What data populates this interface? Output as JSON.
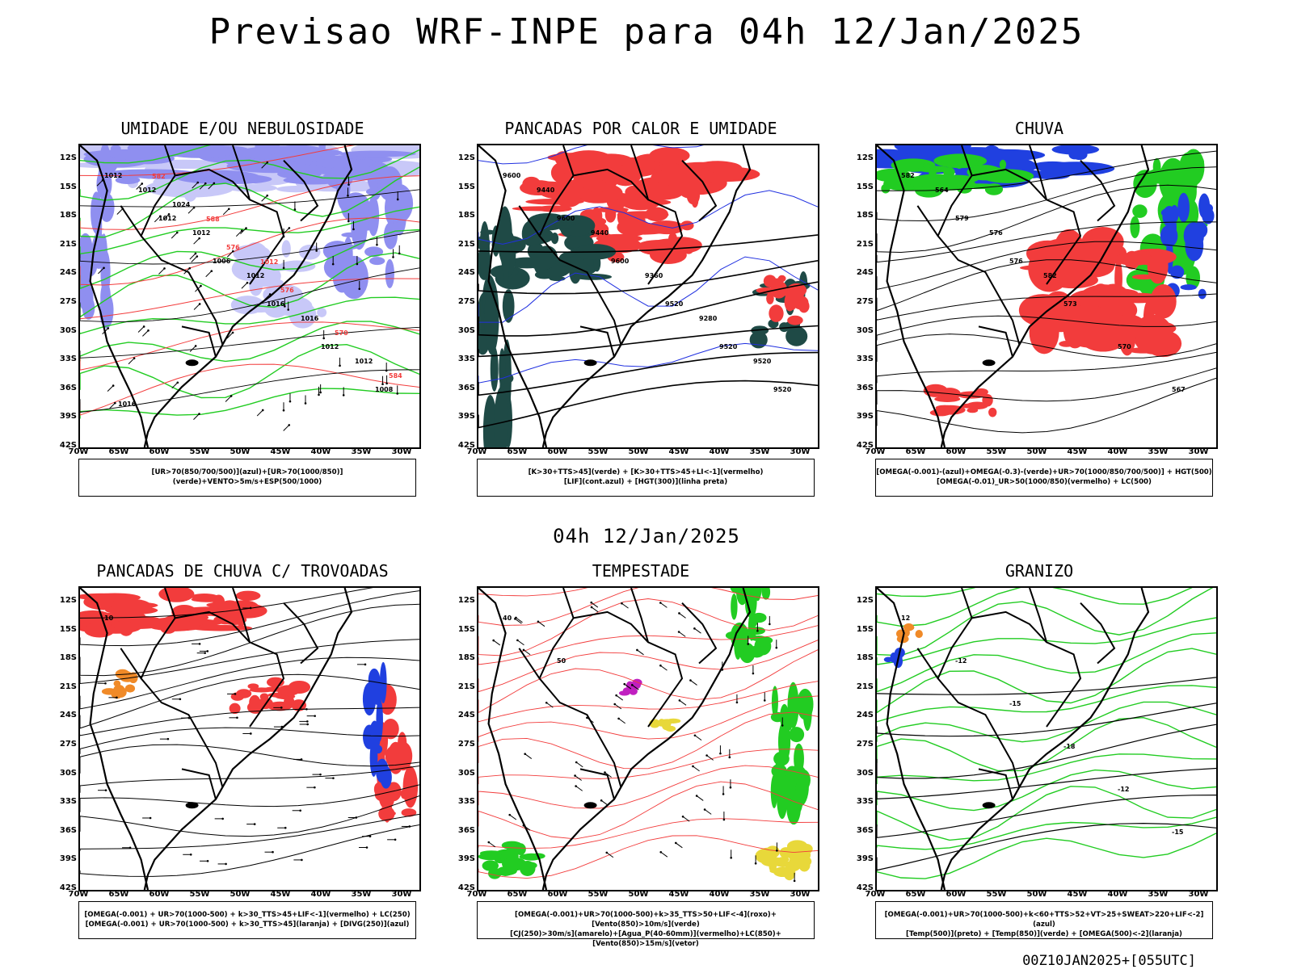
{
  "header": {
    "title": "Previsao WRF-INPE  para 04h 12/Jan/2025"
  },
  "mid_title": "04h 12/Jan/2025",
  "footer": "00Z10JAN2025+[055UTC]",
  "axes": {
    "lat_labels": [
      "12S",
      "15S",
      "18S",
      "21S",
      "24S",
      "27S",
      "30S",
      "33S",
      "36S",
      "39S",
      "42S"
    ],
    "lon_labels": [
      "70W",
      "65W",
      "60W",
      "55W",
      "50W",
      "45W",
      "40W",
      "35W",
      "30W"
    ]
  },
  "panels": [
    {
      "title": "UMIDADE E/OU NEBULOSIDADE",
      "legend": [
        "[UR>70(850/700/500)](azul)+[UR>70(1000/850)](verde)+VENTO>5m/s+ESP(500/1000)"
      ],
      "contour_labels": [
        "1012",
        "1012",
        "1006",
        "1016",
        "1012",
        "1008",
        "1012",
        "1012",
        "1012",
        "1016",
        "1012",
        "1016",
        "1024",
        "576",
        "576",
        "570",
        "584",
        "582",
        "588",
        "1012"
      ]
    },
    {
      "title": "PANCADAS POR CALOR E UMIDADE",
      "legend": [
        "[K>30+TTS>45](verde) + [K>30+TTS>45+LI<-1](vermelho)",
        "[LIF](cont.azul) + [HGT(300)](linha preta)"
      ],
      "contour_labels": [
        "9600",
        "9600",
        "9600",
        "9520",
        "9520",
        "9520",
        "9440",
        "9440",
        "9360",
        "9280",
        "9520"
      ]
    },
    {
      "title": "CHUVA",
      "legend": [
        "[OMEGA(-0.001)-(azul)+OMEGA(-0.3)-(verde)+UR>70(1000/850/700/500)] + HGT(500)",
        "[OMEGA(-0.01)_UR>50(1000/850)(vermelho) + LC(500)"
      ],
      "contour_labels": [
        "582",
        "579",
        "576",
        "573",
        "570",
        "567",
        "564",
        "576",
        "582"
      ]
    },
    {
      "title": "PANCADAS DE CHUVA C/ TROVOADAS",
      "legend": [
        "[OMEGA(-0.001) + UR>70(1000-500) + k>30_TTS>45+LIF<-1](vermelho) + LC(250)",
        "[OMEGA(-0.001) + UR>70(1000-500) + k>30_TTS>45](laranja) + [DIVG(250)](azul)"
      ],
      "contour_labels": [
        "10"
      ]
    },
    {
      "title": "TEMPESTADE",
      "legend": [
        "[OMEGA(-0.001)+UR>70(1000-500)+k>35_TTS>50+LIF<-4](roxo)+[Vento(850)>10m/s](verde)",
        "[CJ(250)>30m/s](amarelo)+[Agua_P(40-60mm)](vermelho)+LC(850)+[Vento(850)>15m/s](vetor)"
      ],
      "contour_labels": [
        "40",
        "50"
      ]
    },
    {
      "title": "GRANIZO",
      "legend": [
        "[OMEGA(-0.001)+UR>70(1000-500)+k<60+TTS>52+VT>25+SWEAT>220+LIF<-2](azul)",
        "[Temp(500)](preto) + [Temp(850)](verde) + [OMEGA(500)<-2](laranja)"
      ],
      "contour_labels": [
        "12",
        "-12",
        "-15",
        "-18",
        "-12",
        "-15"
      ]
    }
  ],
  "colors": {
    "blue_fill": "#8f8ff0",
    "blue_light": "#c8c8f8",
    "green": "#22cc22",
    "red": "#f23c3c",
    "dark_teal": "#1f4a46",
    "yellow": "#e8d83a",
    "orange": "#f08a28",
    "purple": "#c020c0"
  }
}
